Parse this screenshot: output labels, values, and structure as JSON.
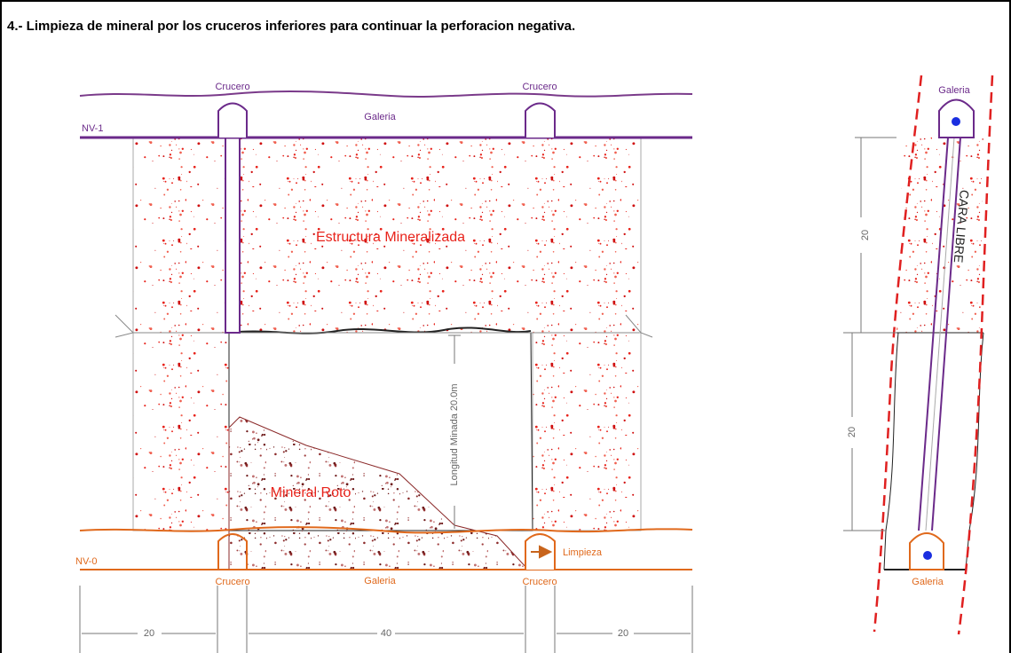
{
  "title": "4.-   Limpieza de mineral por los cruceros inferiores para continuar la perforacion negativa.",
  "section_view": {
    "upper_level": {
      "label": "NV-1",
      "gallery": "Galeria",
      "crosscuts": [
        "Crucero",
        "Crucero"
      ]
    },
    "ore_body": "Estructura Mineralizada",
    "mined_length": "Longitud Minada 20.0m",
    "broken_ore": "Mineral Roto",
    "lower_level": {
      "label": "NV-0",
      "gallery": "Galeria",
      "crosscuts": [
        "Crucero",
        "Crucero"
      ],
      "mucking": "Limpieza"
    },
    "dimensions": [
      "20",
      "40",
      "20"
    ]
  },
  "side_view": {
    "top_gallery": "Galeria",
    "bottom_gallery": "Galeria",
    "free_face": "CARA LIBRE",
    "dimensions": [
      "20",
      "20"
    ]
  }
}
